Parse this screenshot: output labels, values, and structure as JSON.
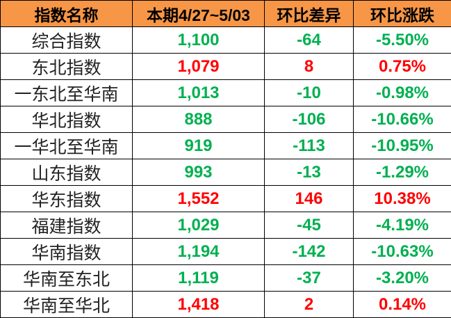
{
  "colors": {
    "header_bg": "#F79646",
    "up": "#FF0000",
    "down": "#00B050"
  },
  "headers": [
    "指数名称",
    "本期4/27~5/03",
    "环比差异",
    "环比涨跌"
  ],
  "rows": [
    {
      "name": "综合指数",
      "value": "1,100",
      "diff": "-64",
      "pct": "-5.50%",
      "trend": "down"
    },
    {
      "name": "东北指数",
      "value": "1,079",
      "diff": "8",
      "pct": "0.75%",
      "trend": "up"
    },
    {
      "name": "一东北至华南",
      "value": "1,013",
      "diff": "-10",
      "pct": "-0.98%",
      "trend": "down"
    },
    {
      "name": "华北指数",
      "value": "888",
      "diff": "-106",
      "pct": "-10.66%",
      "trend": "down"
    },
    {
      "name": "一华北至华南",
      "value": "919",
      "diff": "-113",
      "pct": "-10.95%",
      "trend": "down"
    },
    {
      "name": "山东指数",
      "value": "993",
      "diff": "-13",
      "pct": "-1.29%",
      "trend": "down"
    },
    {
      "name": "华东指数",
      "value": "1,552",
      "diff": "146",
      "pct": "10.38%",
      "trend": "up"
    },
    {
      "name": "福建指数",
      "value": "1,029",
      "diff": "-45",
      "pct": "-4.19%",
      "trend": "down"
    },
    {
      "name": "华南指数",
      "value": "1,194",
      "diff": "-142",
      "pct": "-10.63%",
      "trend": "down"
    },
    {
      "name": "华南至东北",
      "value": "1,119",
      "diff": "-37",
      "pct": "-3.20%",
      "trend": "down"
    },
    {
      "name": "华南至华北",
      "value": "1,418",
      "diff": "2",
      "pct": "0.14%",
      "trend": "up"
    }
  ]
}
